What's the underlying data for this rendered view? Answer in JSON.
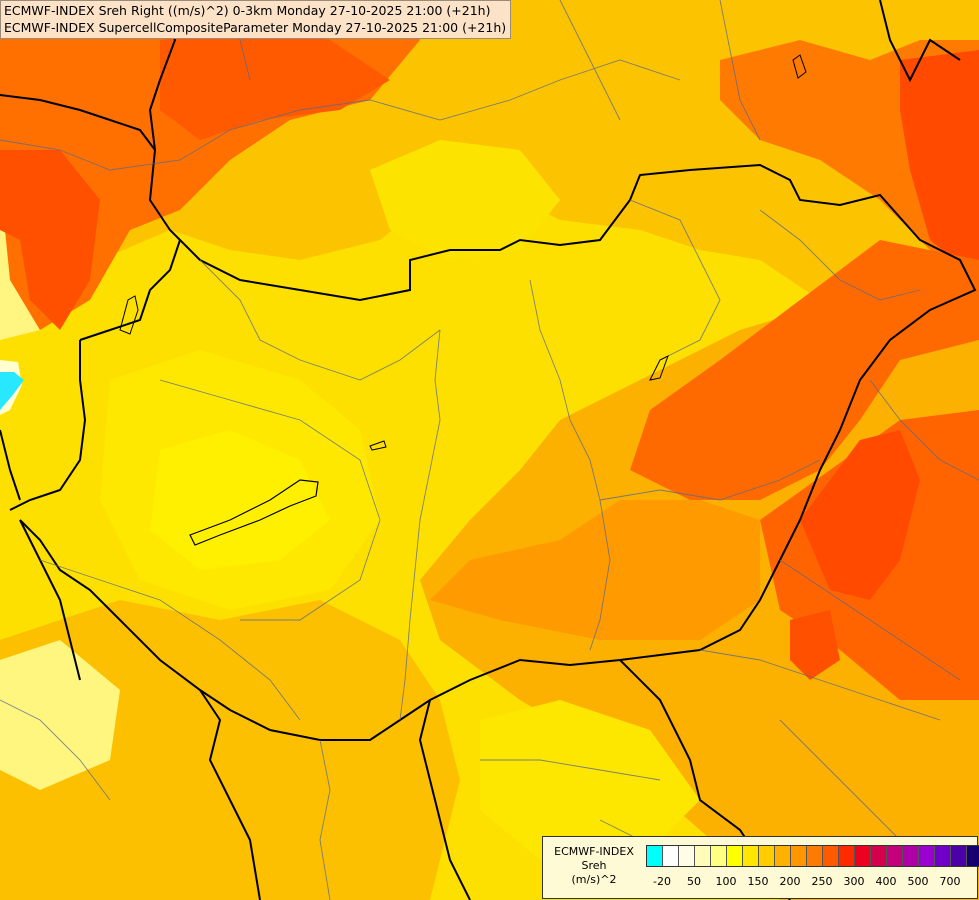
{
  "title": {
    "line1": "ECMWF-INDEX Sreh Right ((m/s)^2) 0-3km Monday 27-10-2025 21:00 (+21h)",
    "line2": "ECMWF-INDEX SupercellCompositeParameter Monday 27-10-2025 21:00 (+21h)"
  },
  "legend": {
    "source": "ECMWF-INDEX",
    "variable": "Sreh",
    "unit": "(m/s)^2",
    "colors": [
      "#00ffff",
      "#ffffff",
      "#fffde6",
      "#fffbb8",
      "#ffff80",
      "#ffff00",
      "#ffe600",
      "#ffcc00",
      "#ffb000",
      "#ff9600",
      "#ff7a00",
      "#ff5a00",
      "#ff2a00",
      "#ee0020",
      "#d4004c",
      "#c4007a",
      "#b000a8",
      "#9a00d0",
      "#7000c8",
      "#4b00a8",
      "#160070"
    ],
    "ticks": [
      {
        "label": "-20",
        "index": 0.5
      },
      {
        "label": "50",
        "index": 2.5
      },
      {
        "label": "100",
        "index": 4.5
      },
      {
        "label": "150",
        "index": 6.5
      },
      {
        "label": "200",
        "index": 8.5
      },
      {
        "label": "250",
        "index": 10.5
      },
      {
        "label": "300",
        "index": 12.5
      },
      {
        "label": "400",
        "index": 14.5
      },
      {
        "label": "500",
        "index": 16.5
      },
      {
        "label": "700",
        "index": 18.5
      }
    ]
  }
}
